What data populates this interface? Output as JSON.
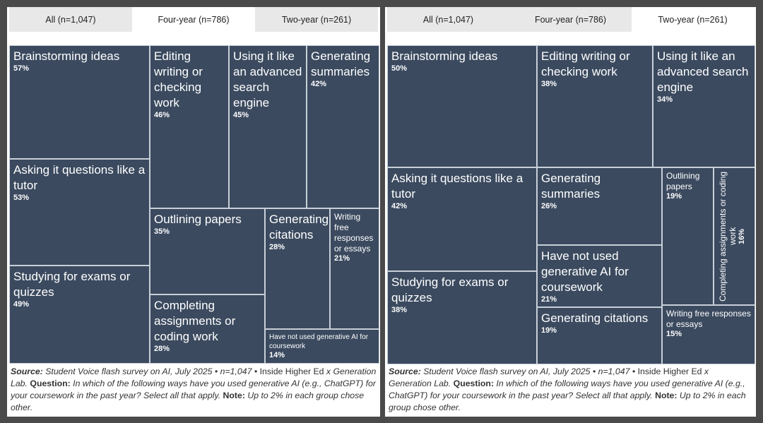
{
  "tabs": [
    "All (n=1,047)",
    "Four-year (n=786)",
    "Two-year (n=261)"
  ],
  "colors": {
    "tile": "#3b4a5f",
    "border": "#c8d0d8",
    "tab_inactive": "#e8e8e8"
  },
  "chart_data": [
    {
      "type": "treemap",
      "active_tab": "Four-year (n=786)",
      "categories": [
        "Brainstorming ideas",
        "Asking it questions like a tutor",
        "Studying for exams or quizzes",
        "Editing writing or checking work",
        "Using it like an advanced search engine",
        "Generating summaries",
        "Outlining papers",
        "Completing assignments or coding work",
        "Generating citations",
        "Writing free responses or essays",
        "Have not used generative AI for coursework"
      ],
      "values": [
        "57%",
        "53%",
        "49%",
        "46%",
        "45%",
        "42%",
        "35%",
        "28%",
        "28%",
        "21%",
        "14%"
      ]
    },
    {
      "type": "treemap",
      "active_tab": "Two-year (n=261)",
      "categories": [
        "Brainstorming ideas",
        "Asking it questions like a tutor",
        "Studying for exams or quizzes",
        "Editing writing or checking work",
        "Using it like an advanced search engine",
        "Generating summaries",
        "Have not used generative AI for coursework",
        "Generating citations",
        "Outlining papers",
        "Completing assignments or coding work",
        "Writing free responses or essays"
      ],
      "values": [
        "50%",
        "42%",
        "38%",
        "38%",
        "34%",
        "26%",
        "21%",
        "19%",
        "19%",
        "16%",
        "15%"
      ]
    }
  ],
  "footnote": {
    "source_label": "Source:",
    "source_text": " Student Voice flash survey on AI, July 2025 • n=1,047 • ",
    "org": "Inside Higher Ed",
    "x": " x ",
    "org2": "Generation Lab",
    "question_label": "Question:",
    "question_text": " In which of the following ways have you used generative AI (e.g., ChatGPT) for your coursework in the past year? Select all that apply. ",
    "note_label": "Note:",
    "note_text": " Up to 2% in each group chose other."
  }
}
